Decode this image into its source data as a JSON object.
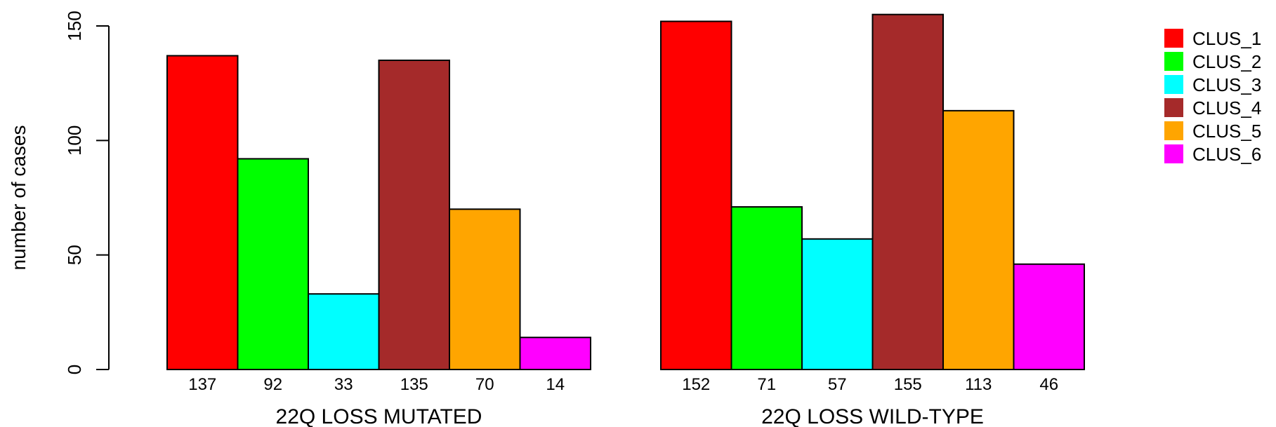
{
  "chart_data": {
    "type": "bar",
    "ylabel": "number of cases",
    "ylim": [
      0,
      150
    ],
    "yticks": [
      0,
      50,
      100,
      150
    ],
    "groups": [
      "22Q LOSS MUTATED",
      "22Q LOSS WILD-TYPE"
    ],
    "legend_position": "top-right",
    "series": [
      {
        "name": "CLUS_1",
        "color": "#FF0000",
        "values": [
          137,
          152
        ],
        "labels": [
          "137",
          "152"
        ]
      },
      {
        "name": "CLUS_2",
        "color": "#00FF00",
        "values": [
          92,
          71
        ],
        "labels": [
          "92",
          "71"
        ]
      },
      {
        "name": "CLUS_3",
        "color": "#00FFFF",
        "values": [
          33,
          57
        ],
        "labels": [
          "33",
          "57"
        ]
      },
      {
        "name": "CLUS_4",
        "color": "#A52A2A",
        "values": [
          135,
          155
        ],
        "labels": [
          "135",
          "155"
        ]
      },
      {
        "name": "CLUS_5",
        "color": "#FFA500",
        "values": [
          70,
          113
        ],
        "labels": [
          "70",
          "113"
        ]
      },
      {
        "name": "CLUS_6",
        "color": "#FF00FF",
        "values": [
          14,
          46
        ],
        "labels": [
          "14",
          "46"
        ]
      }
    ],
    "tick_labels": [
      "0",
      "50",
      "100",
      "150"
    ],
    "grid": false
  }
}
